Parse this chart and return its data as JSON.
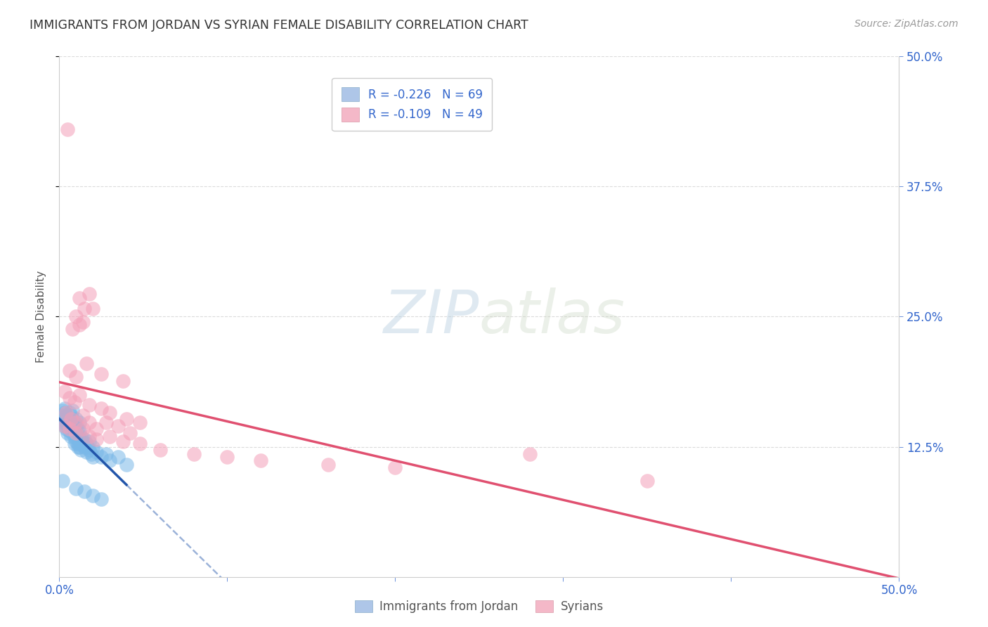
{
  "title": "IMMIGRANTS FROM JORDAN VS SYRIAN FEMALE DISABILITY CORRELATION CHART",
  "source": "Source: ZipAtlas.com",
  "ylabel_label": "Female Disability",
  "xlim": [
    0.0,
    0.5
  ],
  "ylim": [
    0.0,
    0.5
  ],
  "ytick_positions": [
    0.125,
    0.25,
    0.375,
    0.5
  ],
  "ytick_labels": [
    "12.5%",
    "25.0%",
    "37.5%",
    "50.0%"
  ],
  "legend_text_color": "#3366cc",
  "jordan_color": "#7ab8e8",
  "syrian_color": "#f4a0b8",
  "jordan_line_color": "#2255aa",
  "syrian_line_color": "#e05070",
  "watermark": "ZIPatlas",
  "background_color": "#ffffff",
  "grid_color": "#cccccc",
  "axis_label_color": "#3366cc",
  "title_color": "#333333",
  "jordan_points": [
    [
      0.001,
      0.155
    ],
    [
      0.002,
      0.15
    ],
    [
      0.002,
      0.148
    ],
    [
      0.002,
      0.16
    ],
    [
      0.003,
      0.152
    ],
    [
      0.003,
      0.145
    ],
    [
      0.003,
      0.158
    ],
    [
      0.003,
      0.162
    ],
    [
      0.004,
      0.148
    ],
    [
      0.004,
      0.155
    ],
    [
      0.004,
      0.15
    ],
    [
      0.004,
      0.142
    ],
    [
      0.005,
      0.145
    ],
    [
      0.005,
      0.152
    ],
    [
      0.005,
      0.138
    ],
    [
      0.005,
      0.148
    ],
    [
      0.006,
      0.152
    ],
    [
      0.006,
      0.145
    ],
    [
      0.006,
      0.158
    ],
    [
      0.006,
      0.14
    ],
    [
      0.007,
      0.148
    ],
    [
      0.007,
      0.155
    ],
    [
      0.007,
      0.135
    ],
    [
      0.007,
      0.142
    ],
    [
      0.008,
      0.145
    ],
    [
      0.008,
      0.152
    ],
    [
      0.008,
      0.138
    ],
    [
      0.008,
      0.16
    ],
    [
      0.009,
      0.142
    ],
    [
      0.009,
      0.135
    ],
    [
      0.009,
      0.148
    ],
    [
      0.009,
      0.128
    ],
    [
      0.01,
      0.138
    ],
    [
      0.01,
      0.145
    ],
    [
      0.01,
      0.13
    ],
    [
      0.01,
      0.152
    ],
    [
      0.011,
      0.135
    ],
    [
      0.011,
      0.128
    ],
    [
      0.011,
      0.142
    ],
    [
      0.011,
      0.125
    ],
    [
      0.012,
      0.132
    ],
    [
      0.012,
      0.14
    ],
    [
      0.012,
      0.125
    ],
    [
      0.012,
      0.148
    ],
    [
      0.013,
      0.128
    ],
    [
      0.013,
      0.135
    ],
    [
      0.013,
      0.122
    ],
    [
      0.014,
      0.13
    ],
    [
      0.015,
      0.125
    ],
    [
      0.015,
      0.132
    ],
    [
      0.016,
      0.128
    ],
    [
      0.016,
      0.12
    ],
    [
      0.017,
      0.125
    ],
    [
      0.018,
      0.122
    ],
    [
      0.018,
      0.13
    ],
    [
      0.019,
      0.118
    ],
    [
      0.02,
      0.125
    ],
    [
      0.02,
      0.115
    ],
    [
      0.022,
      0.12
    ],
    [
      0.025,
      0.115
    ],
    [
      0.028,
      0.118
    ],
    [
      0.03,
      0.112
    ],
    [
      0.035,
      0.115
    ],
    [
      0.04,
      0.108
    ],
    [
      0.002,
      0.092
    ],
    [
      0.01,
      0.085
    ],
    [
      0.015,
      0.082
    ],
    [
      0.02,
      0.078
    ],
    [
      0.025,
      0.075
    ]
  ],
  "syrian_points": [
    [
      0.005,
      0.43
    ],
    [
      0.012,
      0.268
    ],
    [
      0.015,
      0.258
    ],
    [
      0.018,
      0.272
    ],
    [
      0.01,
      0.25
    ],
    [
      0.014,
      0.245
    ],
    [
      0.02,
      0.258
    ],
    [
      0.008,
      0.238
    ],
    [
      0.012,
      0.242
    ],
    [
      0.006,
      0.198
    ],
    [
      0.01,
      0.192
    ],
    [
      0.016,
      0.205
    ],
    [
      0.025,
      0.195
    ],
    [
      0.038,
      0.188
    ],
    [
      0.003,
      0.178
    ],
    [
      0.006,
      0.172
    ],
    [
      0.009,
      0.168
    ],
    [
      0.012,
      0.175
    ],
    [
      0.018,
      0.165
    ],
    [
      0.025,
      0.162
    ],
    [
      0.03,
      0.158
    ],
    [
      0.04,
      0.152
    ],
    [
      0.048,
      0.148
    ],
    [
      0.004,
      0.158
    ],
    [
      0.007,
      0.152
    ],
    [
      0.01,
      0.148
    ],
    [
      0.014,
      0.155
    ],
    [
      0.018,
      0.148
    ],
    [
      0.022,
      0.142
    ],
    [
      0.028,
      0.148
    ],
    [
      0.035,
      0.145
    ],
    [
      0.042,
      0.138
    ],
    [
      0.003,
      0.145
    ],
    [
      0.006,
      0.142
    ],
    [
      0.01,
      0.138
    ],
    [
      0.014,
      0.142
    ],
    [
      0.018,
      0.135
    ],
    [
      0.022,
      0.132
    ],
    [
      0.03,
      0.135
    ],
    [
      0.038,
      0.13
    ],
    [
      0.048,
      0.128
    ],
    [
      0.06,
      0.122
    ],
    [
      0.08,
      0.118
    ],
    [
      0.1,
      0.115
    ],
    [
      0.12,
      0.112
    ],
    [
      0.16,
      0.108
    ],
    [
      0.2,
      0.105
    ],
    [
      0.28,
      0.118
    ],
    [
      0.35,
      0.092
    ]
  ]
}
